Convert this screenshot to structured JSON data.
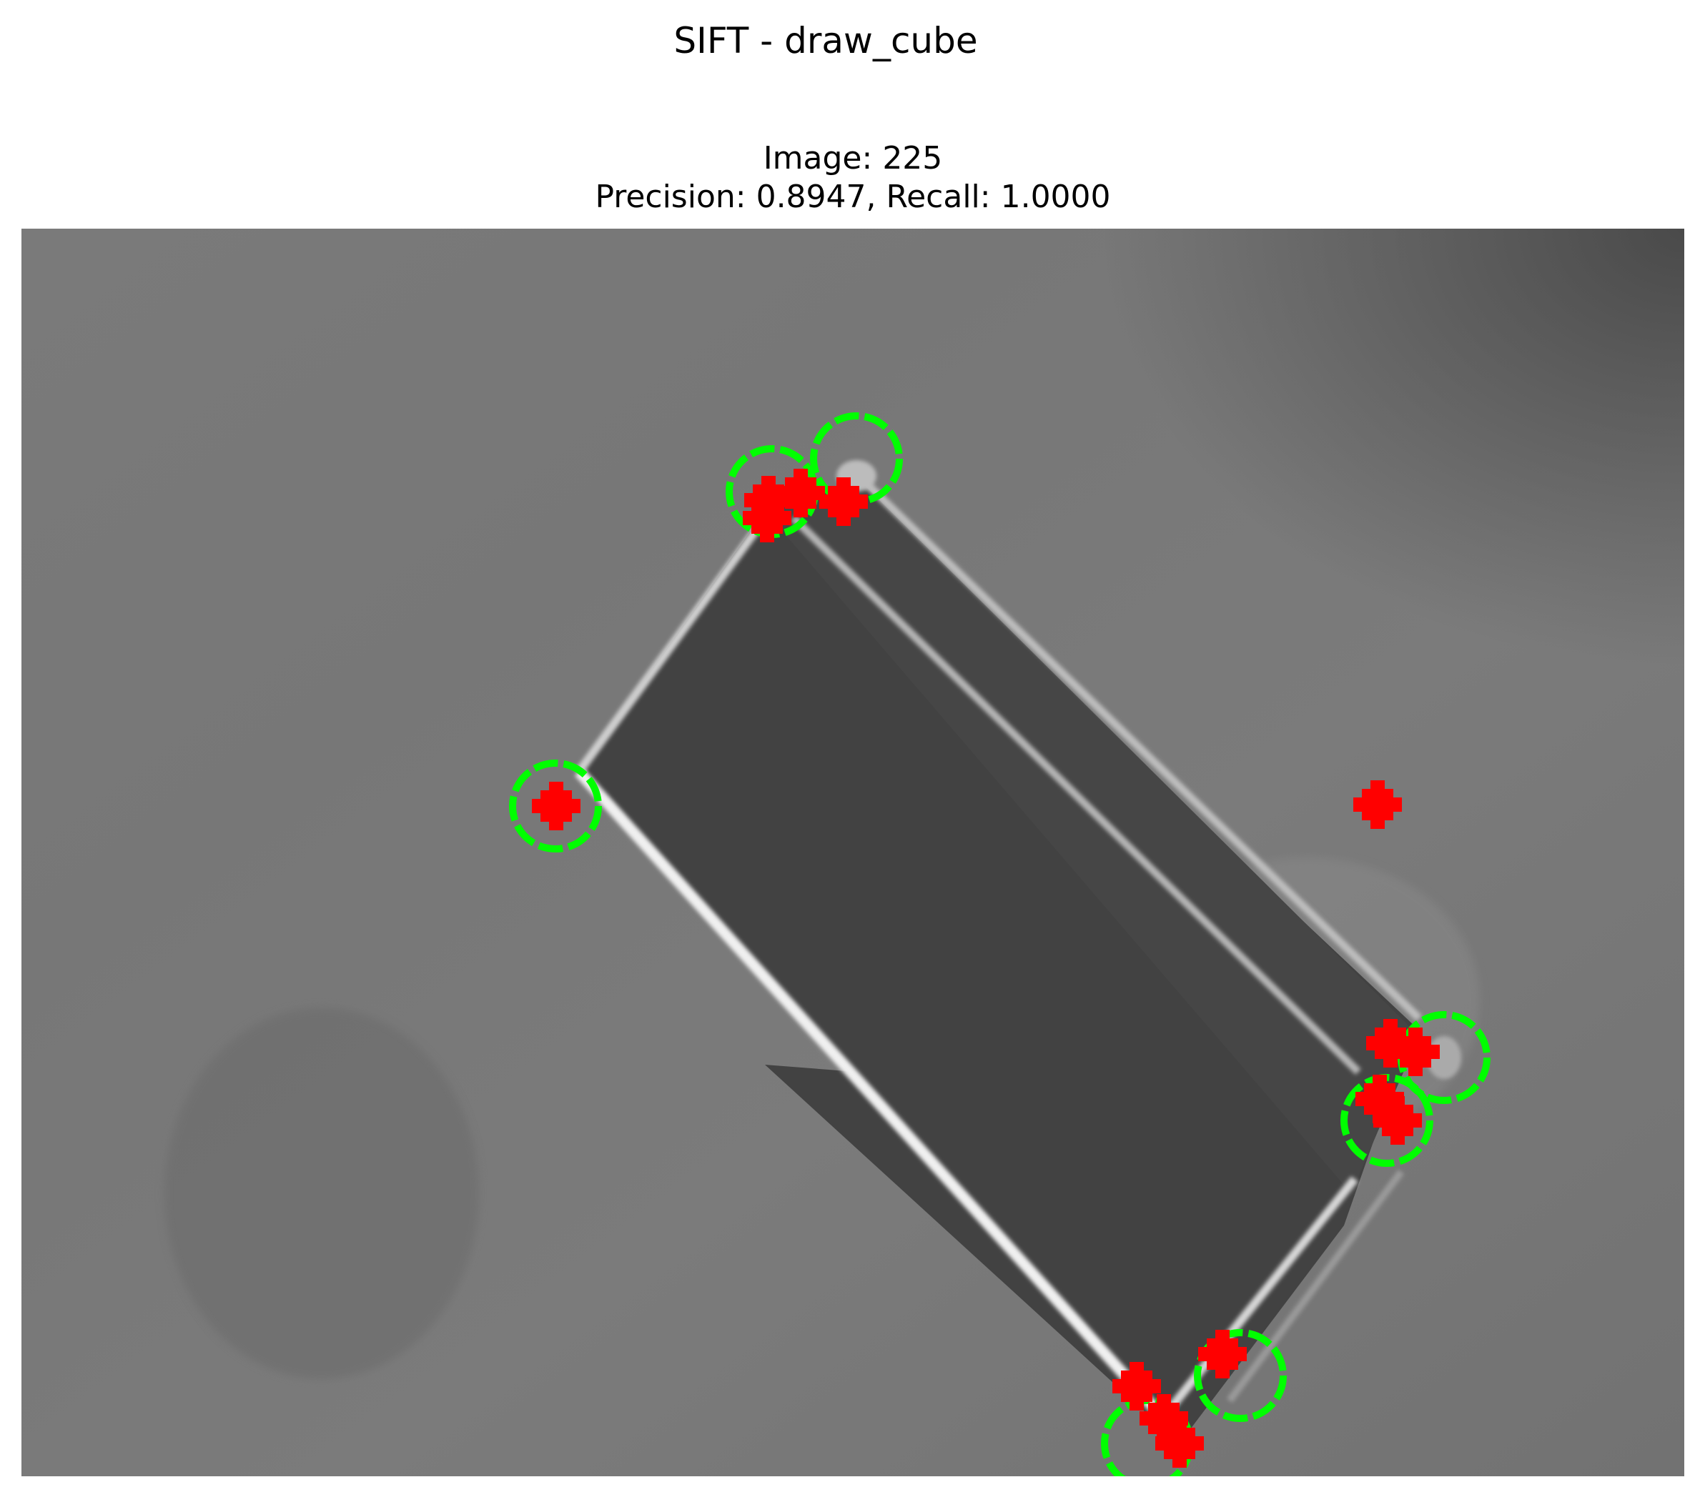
{
  "figure": {
    "title": "SIFT - draw_cube",
    "subtitle_line1": "Image: 225",
    "subtitle_line2": "Precision: 0.8947, Recall: 1.0000"
  },
  "colors": {
    "ground_truth_marker": "#00ff00",
    "detected_marker": "#ff0000",
    "background_gray": "#777777",
    "cube_face": "#424242",
    "cube_edge": "#e6e6e6"
  },
  "image": {
    "description_icon": "grayscale-image",
    "marker_legend": []
  }
}
